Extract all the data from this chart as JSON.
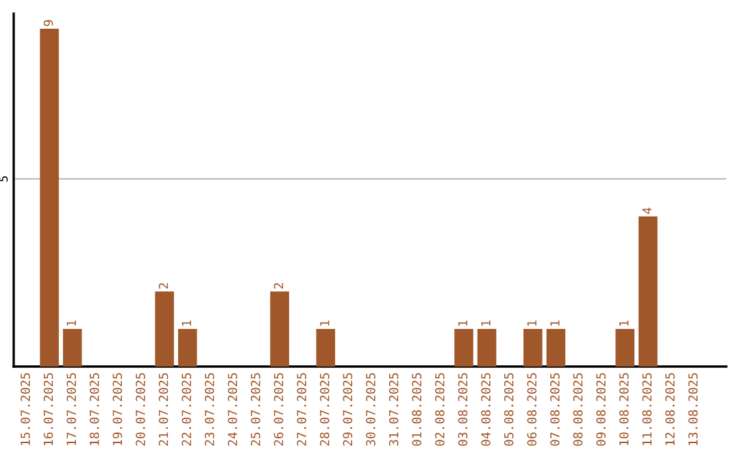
{
  "chart_data": {
    "type": "bar",
    "categories": [
      "15.07.2025",
      "16.07.2025",
      "17.07.2025",
      "18.07.2025",
      "19.07.2025",
      "20.07.2025",
      "21.07.2025",
      "22.07.2025",
      "23.07.2025",
      "24.07.2025",
      "25.07.2025",
      "26.07.2025",
      "27.07.2025",
      "28.07.2025",
      "29.07.2025",
      "30.07.2025",
      "31.07.2025",
      "01.08.2025",
      "02.08.2025",
      "03.08.2025",
      "04.08.2025",
      "05.08.2025",
      "06.08.2025",
      "07.08.2025",
      "08.08.2025",
      "09.08.2025",
      "10.08.2025",
      "11.08.2025",
      "12.08.2025",
      "13.08.2025"
    ],
    "values": [
      0,
      9,
      1,
      0,
      0,
      0,
      2,
      1,
      0,
      0,
      0,
      2,
      0,
      1,
      0,
      0,
      0,
      0,
      0,
      1,
      1,
      0,
      1,
      1,
      0,
      0,
      1,
      4,
      0,
      0
    ],
    "value_labels": [
      null,
      "9",
      "1",
      null,
      null,
      null,
      "2",
      "1",
      null,
      null,
      null,
      "2",
      null,
      "1",
      null,
      null,
      null,
      null,
      null,
      "1",
      "1",
      null,
      "1",
      "1",
      null,
      null,
      "1",
      "4",
      null,
      null
    ],
    "color": "#a0572a",
    "ylim": [
      0,
      9.4
    ],
    "yticks": [
      5
    ],
    "grid": "y"
  }
}
